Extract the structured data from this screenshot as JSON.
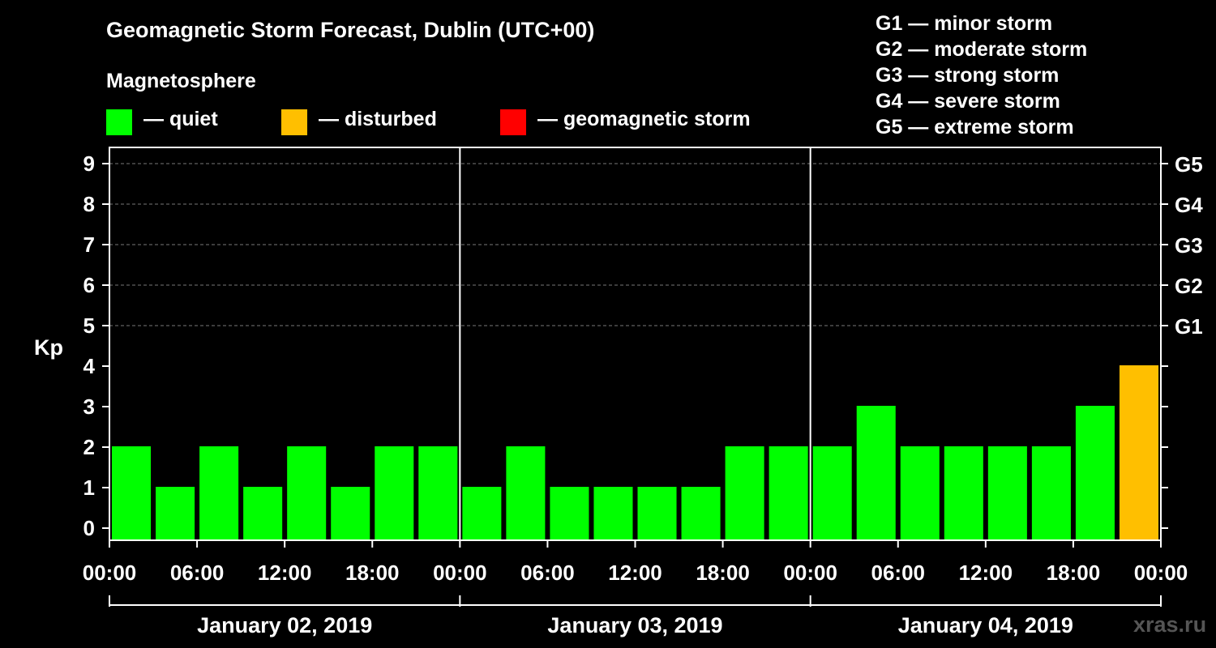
{
  "header": {
    "title": "Geomagnetic Storm Forecast, Dublin (UTC+00)"
  },
  "legend": {
    "title": "Magnetosphere",
    "items": [
      {
        "label": "— quiet",
        "color": "#00ff00"
      },
      {
        "label": "— disturbed",
        "color": "#ffbf00"
      },
      {
        "label": "— geomagnetic storm",
        "color": "#ff0000"
      }
    ]
  },
  "storm_levels": [
    "G1 — minor storm",
    "G2 — moderate storm",
    "G3 — strong storm",
    "G4 — severe storm",
    "G5 — extreme storm"
  ],
  "watermark": "xras.ru",
  "chart_data": {
    "type": "bar",
    "title": "Geomagnetic Storm Forecast, Dublin (UTC+00)",
    "ylabel": "Kp",
    "ylim": [
      0,
      9
    ],
    "yticks": [
      "0",
      "1",
      "2",
      "3",
      "4",
      "5",
      "6",
      "7",
      "8",
      "9"
    ],
    "right_axis_labels": [
      {
        "kp": 5,
        "label": "G1"
      },
      {
        "kp": 6,
        "label": "G2"
      },
      {
        "kp": 7,
        "label": "G3"
      },
      {
        "kp": 8,
        "label": "G4"
      },
      {
        "kp": 9,
        "label": "G5"
      }
    ],
    "xtick_labels": [
      "00:00",
      "06:00",
      "12:00",
      "18:00",
      "00:00",
      "06:00",
      "12:00",
      "18:00",
      "00:00",
      "06:00",
      "12:00",
      "18:00",
      "00:00"
    ],
    "days": [
      "January 02, 2019",
      "January 03, 2019",
      "January 04, 2019"
    ],
    "interval_hours": 3,
    "values": [
      2,
      1,
      2,
      1,
      2,
      1,
      2,
      2,
      1,
      2,
      1,
      1,
      1,
      1,
      2,
      2,
      2,
      3,
      2,
      2,
      2,
      2,
      3,
      4
    ],
    "color_thresholds": {
      "quiet_below": 4,
      "disturbed_below": 5
    },
    "gridlines": "dashed at Kp 5 to 9"
  }
}
